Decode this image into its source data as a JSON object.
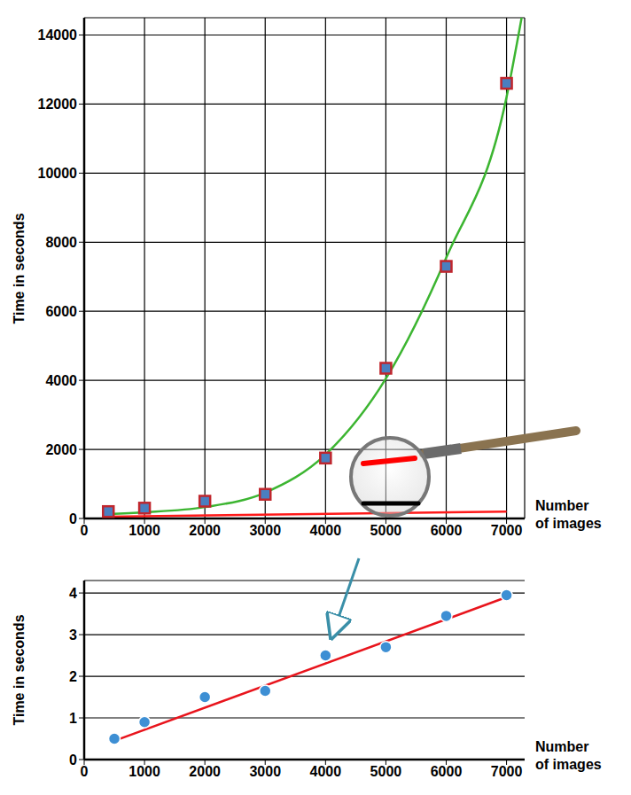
{
  "chart_data": [
    {
      "type": "scatter",
      "x_label": "Number of images",
      "y_label": "Time in seconds",
      "xlim": [
        0,
        7300
      ],
      "xticks": [
        0,
        1000,
        2000,
        3000,
        4000,
        5000,
        6000,
        7000
      ],
      "ylim": [
        0,
        14500
      ],
      "yticks": [
        0,
        2000,
        4000,
        6000,
        8000,
        10000,
        12000,
        14000
      ],
      "grid": true,
      "series": [
        {
          "type": "line",
          "color": "#3cb531",
          "line_style": "solid",
          "x": [
            400,
            1000,
            2000,
            3000,
            4000,
            5000,
            6000,
            7000,
            7250
          ],
          "values": [
            130,
            180,
            330,
            750,
            1850,
            4050,
            7550,
            12200,
            14500
          ]
        },
        {
          "type": "line",
          "color": "#ff1a1a",
          "line_style": "solid",
          "x": [
            400,
            7000
          ],
          "values": [
            50,
            200
          ]
        },
        {
          "type": "scatter",
          "color": "#c0262d",
          "marker": "square",
          "x": [
            400,
            1000,
            2000,
            3000,
            4000,
            5000,
            6000,
            7000
          ],
          "values": [
            200,
            300,
            500,
            700,
            1750,
            4350,
            7300,
            12600
          ]
        }
      ]
    },
    {
      "type": "scatter",
      "x_label": "Number of images",
      "y_label": "Time in seconds",
      "xlim": [
        0,
        7300
      ],
      "xticks": [
        0,
        1000,
        2000,
        3000,
        4000,
        5000,
        6000,
        7000
      ],
      "ylim": [
        0,
        4.3
      ],
      "yticks": [
        0,
        1,
        2,
        3,
        4
      ],
      "grid": "y",
      "series": [
        {
          "type": "line",
          "color": "#e8141c",
          "line_style": "solid",
          "x": [
            500,
            7000
          ],
          "values": [
            0.45,
            3.9
          ]
        },
        {
          "type": "scatter",
          "color": "#3d8fd4",
          "marker": "circle",
          "x": [
            500,
            1000,
            2000,
            3000,
            4000,
            5000,
            6000,
            7000
          ],
          "values": [
            0.5,
            0.9,
            1.5,
            1.65,
            2.5,
            2.7,
            3.45,
            3.95
          ]
        }
      ]
    }
  ]
}
